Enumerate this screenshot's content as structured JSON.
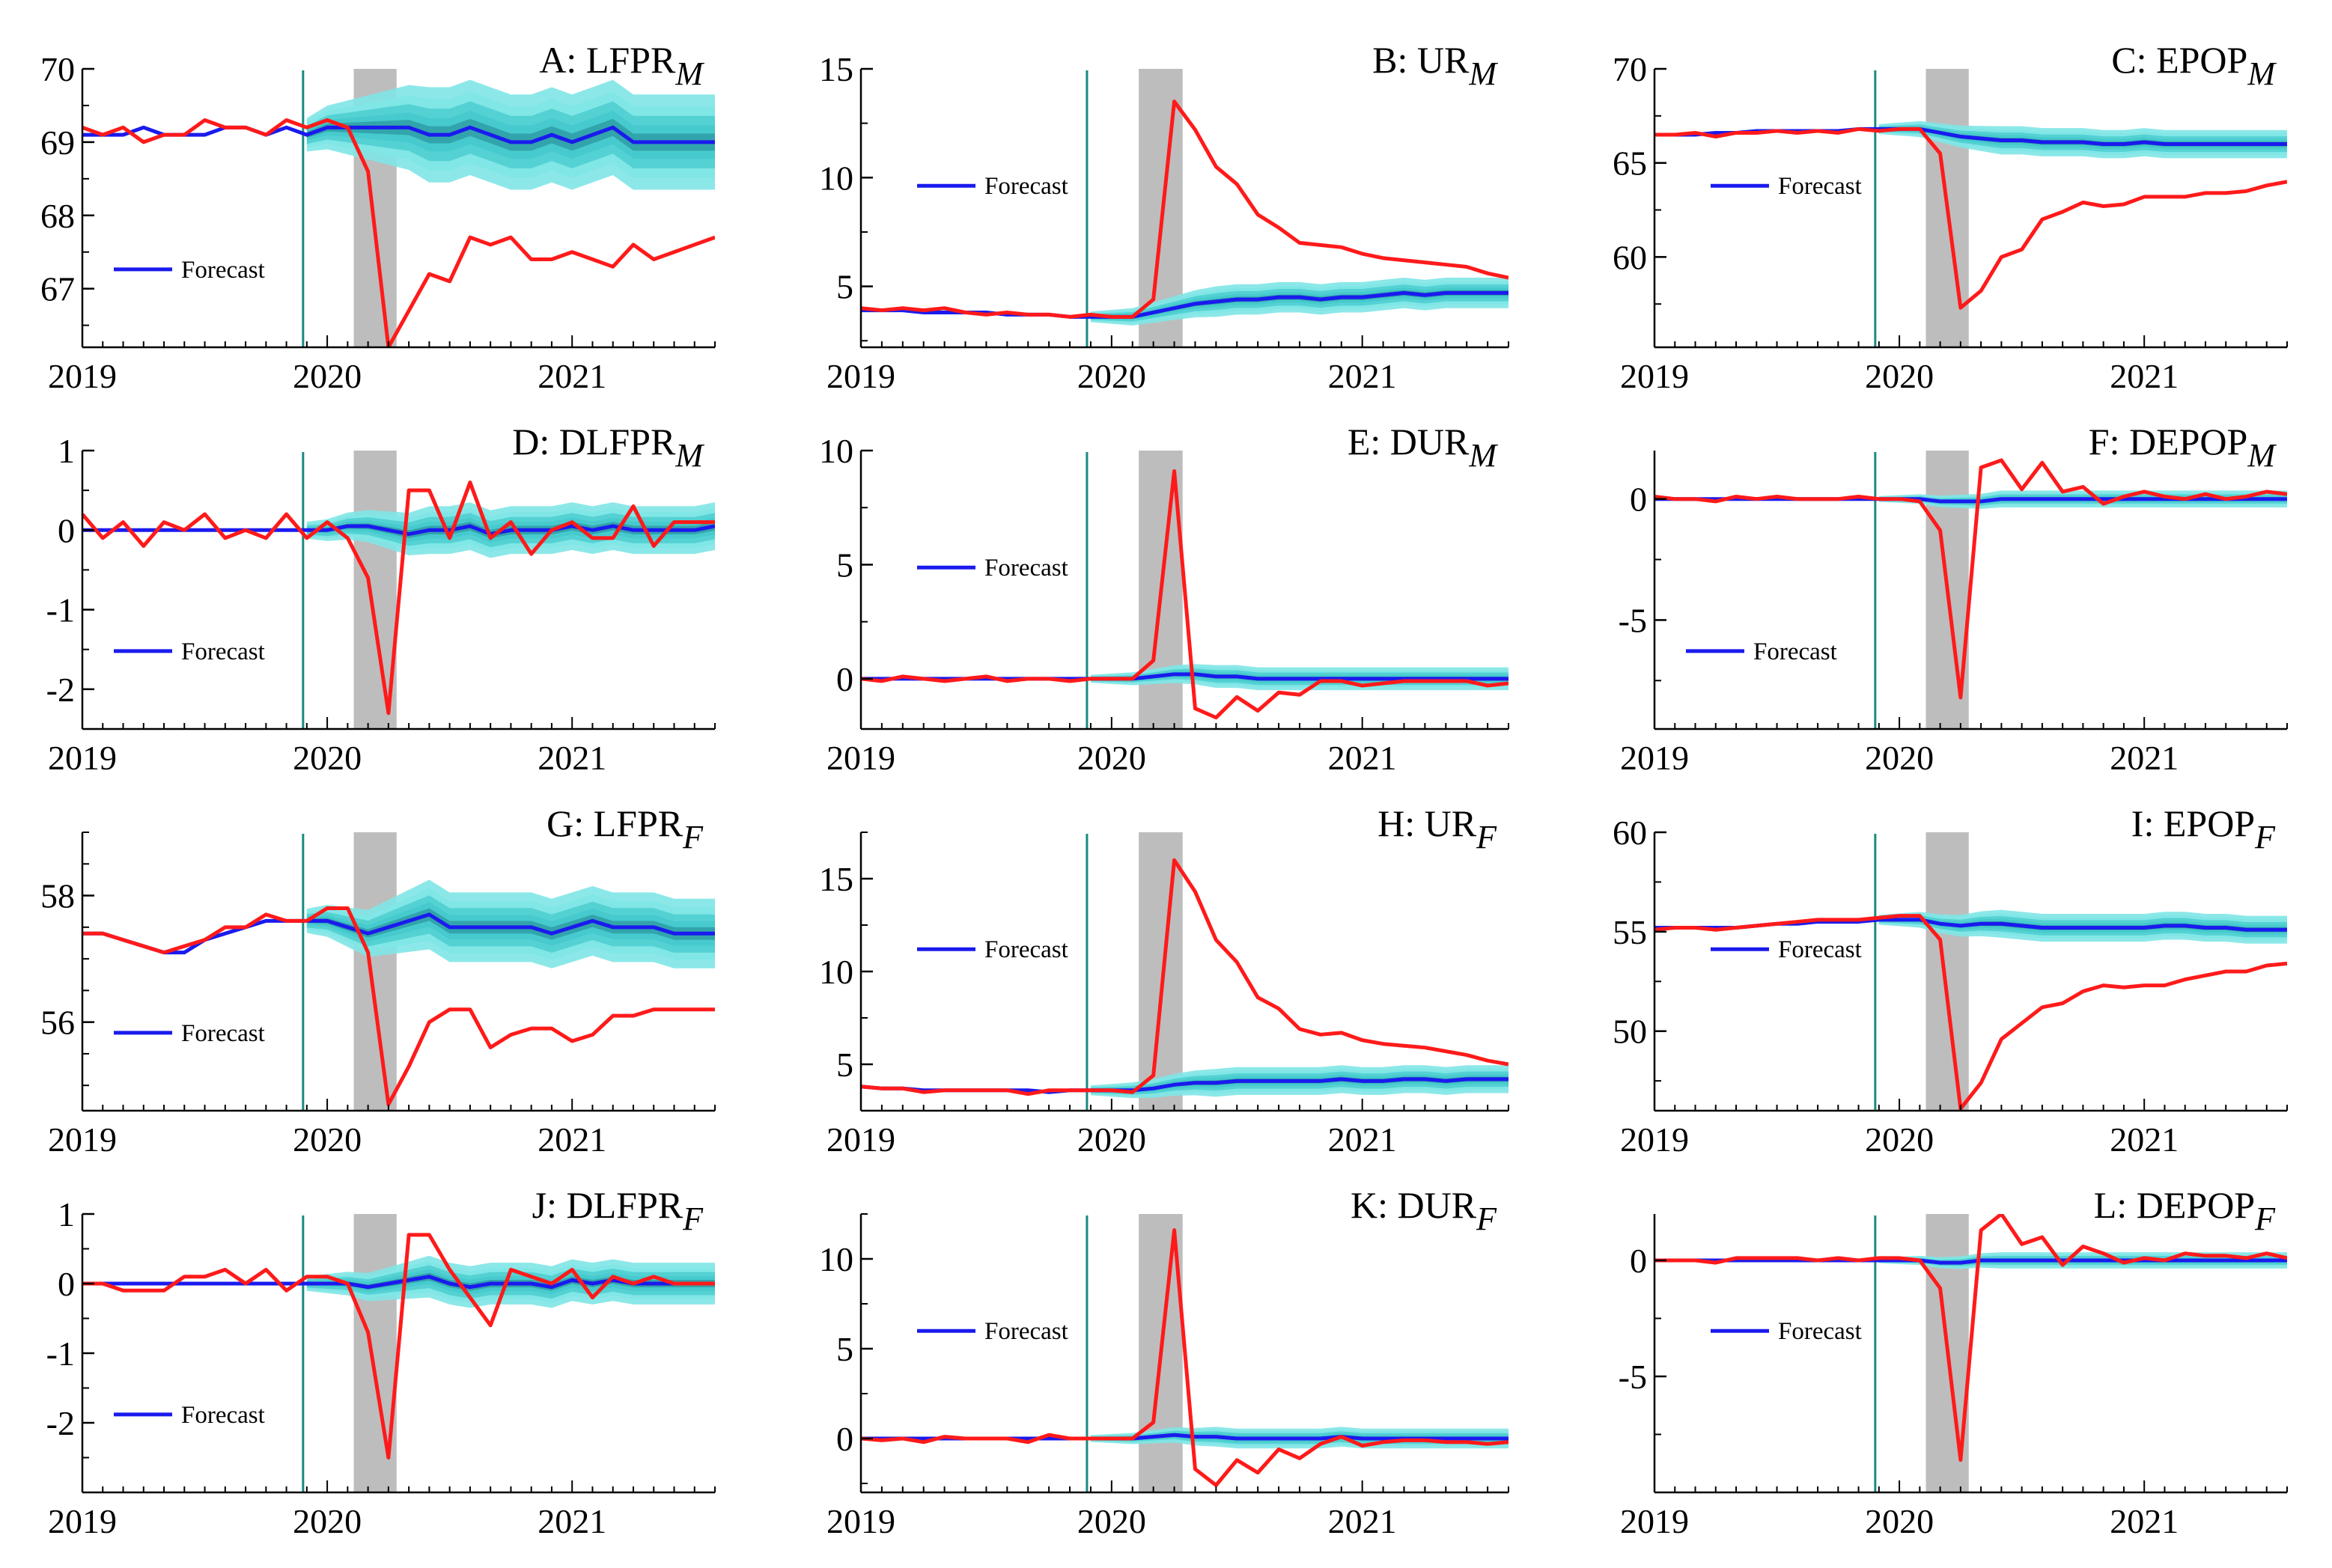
{
  "figure": {
    "x_ticks": [
      "2019",
      "2020",
      "2021"
    ],
    "legend_label": "Forecast",
    "colors": {
      "actual": "#ff1a1a",
      "forecast": "#1a1aee",
      "band_outer": "#7fe6e6",
      "band_mid": "#45c9cc",
      "band_inner": "#2f9ea6",
      "covid_shade": "#bdbdbd",
      "forecast_start_line": "#1a8a80"
    }
  },
  "chart_data": [
    {
      "id": "A",
      "title_main": "A: LFPR",
      "title_sub": "M",
      "type": "line",
      "ylim": [
        66.2,
        70
      ],
      "yticks": [
        67,
        68,
        69,
        70
      ],
      "yticklabels": [
        "67",
        "68",
        "69",
        "70"
      ],
      "minor_step": 0.5,
      "actual": [
        69.2,
        69.1,
        69.2,
        69.0,
        69.1,
        69.1,
        69.3,
        69.2,
        69.2,
        69.1,
        69.3,
        69.2,
        69.3,
        69.2,
        68.6,
        66.2,
        66.7,
        67.2,
        67.1,
        67.7,
        67.6,
        67.7,
        67.4,
        67.4,
        67.5,
        67.4,
        67.3,
        67.6,
        67.4,
        67.5,
        67.6,
        67.7
      ],
      "forecast": [
        69.1,
        69.1,
        69.1,
        69.2,
        69.1,
        69.1,
        69.1,
        69.2,
        69.2,
        69.1,
        69.2,
        69.1,
        69.2,
        69.2,
        69.2,
        69.2,
        69.2,
        69.1,
        69.1,
        69.2,
        69.1,
        69.0,
        69.0,
        69.1,
        69.0,
        69.1,
        69.2,
        69.0,
        69.0,
        69.0,
        69.0,
        69.0
      ],
      "band_half": 0.65,
      "legend_pos": "lower-left"
    },
    {
      "id": "B",
      "title_main": "B: UR",
      "title_sub": "M",
      "type": "line",
      "ylim": [
        2.2,
        15
      ],
      "yticks": [
        5,
        10,
        15
      ],
      "yticklabels": [
        "5",
        "10",
        "15"
      ],
      "minor_step": 2.5,
      "actual": [
        4.0,
        3.9,
        4.0,
        3.9,
        4.0,
        3.8,
        3.7,
        3.8,
        3.7,
        3.7,
        3.6,
        3.7,
        3.6,
        3.6,
        4.4,
        13.5,
        12.2,
        10.5,
        9.7,
        8.3,
        7.7,
        7.0,
        6.9,
        6.8,
        6.5,
        6.3,
        6.2,
        6.1,
        6.0,
        5.9,
        5.6,
        5.4
      ],
      "forecast": [
        3.9,
        3.9,
        3.9,
        3.8,
        3.8,
        3.8,
        3.8,
        3.7,
        3.7,
        3.7,
        3.6,
        3.6,
        3.6,
        3.6,
        3.8,
        4.0,
        4.2,
        4.3,
        4.4,
        4.4,
        4.5,
        4.5,
        4.4,
        4.5,
        4.5,
        4.6,
        4.7,
        4.6,
        4.7,
        4.7,
        4.7,
        4.7
      ],
      "band_half": 0.7,
      "legend_pos": "upper-left"
    },
    {
      "id": "C",
      "title_main": "C: EPOP",
      "title_sub": "M",
      "type": "line",
      "ylim": [
        55.2,
        70
      ],
      "yticks": [
        60,
        65,
        70
      ],
      "yticklabels": [
        "60",
        "65",
        "70"
      ],
      "minor_step": 2.5,
      "actual": [
        66.5,
        66.5,
        66.6,
        66.4,
        66.6,
        66.6,
        66.7,
        66.6,
        66.7,
        66.6,
        66.8,
        66.7,
        66.8,
        66.8,
        65.5,
        57.3,
        58.2,
        60.0,
        60.4,
        62.0,
        62.4,
        62.9,
        62.7,
        62.8,
        63.2,
        63.2,
        63.2,
        63.4,
        63.4,
        63.5,
        63.8,
        64.0
      ],
      "forecast": [
        66.5,
        66.5,
        66.5,
        66.6,
        66.6,
        66.7,
        66.7,
        66.7,
        66.7,
        66.7,
        66.8,
        66.8,
        66.8,
        66.8,
        66.6,
        66.4,
        66.3,
        66.2,
        66.2,
        66.1,
        66.1,
        66.1,
        66.0,
        66.0,
        66.1,
        66.0,
        66.0,
        66.0,
        66.0,
        66.0,
        66.0,
        66.0
      ],
      "band_half": 0.75,
      "legend_pos": "upper-left"
    },
    {
      "id": "D",
      "title_main": "D: DLFPR",
      "title_sub": "M",
      "type": "line",
      "ylim": [
        -2.5,
        1
      ],
      "yticks": [
        -2,
        -1,
        0,
        1
      ],
      "yticklabels": [
        "-2",
        "-1",
        "0",
        "1"
      ],
      "minor_step": 0.5,
      "actual": [
        0.2,
        -0.1,
        0.1,
        -0.2,
        0.1,
        0.0,
        0.2,
        -0.1,
        0.0,
        -0.1,
        0.2,
        -0.1,
        0.1,
        -0.1,
        -0.6,
        -2.3,
        0.5,
        0.5,
        -0.1,
        0.6,
        -0.1,
        0.1,
        -0.3,
        0.0,
        0.1,
        -0.1,
        -0.1,
        0.3,
        -0.2,
        0.1,
        0.1,
        0.1
      ],
      "forecast": [
        0.0,
        0.0,
        0.0,
        0.0,
        0.0,
        0.0,
        0.0,
        0.0,
        0.0,
        0.0,
        0.0,
        0.0,
        0.0,
        0.05,
        0.05,
        0.0,
        -0.05,
        0.0,
        0.0,
        0.05,
        -0.05,
        0.0,
        0.0,
        0.0,
        0.05,
        0.0,
        0.05,
        0.0,
        0.0,
        0.0,
        0.0,
        0.05
      ],
      "band_half": 0.3,
      "legend_pos": "lower-left"
    },
    {
      "id": "E",
      "title_main": "E: DUR",
      "title_sub": "M",
      "type": "line",
      "ylim": [
        -2.2,
        10
      ],
      "yticks": [
        0,
        5,
        10
      ],
      "yticklabels": [
        "0",
        "5",
        "10"
      ],
      "minor_step": 2.5,
      "actual": [
        0.0,
        -0.1,
        0.1,
        0.0,
        -0.1,
        0.0,
        0.1,
        -0.1,
        0.0,
        0.0,
        -0.1,
        0.0,
        0.0,
        0.0,
        0.8,
        9.1,
        -1.3,
        -1.7,
        -0.8,
        -1.4,
        -0.6,
        -0.7,
        -0.1,
        -0.1,
        -0.3,
        -0.2,
        -0.1,
        -0.1,
        -0.1,
        -0.1,
        -0.3,
        -0.2
      ],
      "forecast": [
        0.0,
        0.0,
        0.0,
        0.0,
        0.0,
        0.0,
        0.0,
        0.0,
        0.0,
        0.0,
        0.0,
        0.0,
        0.0,
        0.0,
        0.1,
        0.2,
        0.2,
        0.1,
        0.1,
        0.0,
        0.0,
        0.0,
        0.0,
        0.0,
        0.0,
        0.0,
        0.0,
        0.0,
        0.0,
        0.0,
        0.0,
        0.0
      ],
      "band_half": 0.5,
      "legend_pos": "upper-left"
    },
    {
      "id": "F",
      "title_main": "F: DEPOP",
      "title_sub": "M",
      "type": "line",
      "ylim": [
        -9.5,
        2
      ],
      "yticks": [
        -5,
        0
      ],
      "yticklabels": [
        "-5",
        "0"
      ],
      "minor_step": 2.5,
      "actual": [
        0.1,
        0.0,
        0.0,
        -0.1,
        0.1,
        0.0,
        0.1,
        0.0,
        0.0,
        0.0,
        0.1,
        0.0,
        0.0,
        -0.1,
        -1.3,
        -8.2,
        1.3,
        1.6,
        0.4,
        1.5,
        0.3,
        0.5,
        -0.2,
        0.1,
        0.3,
        0.1,
        0.0,
        0.2,
        0.0,
        0.1,
        0.3,
        0.2
      ],
      "forecast": [
        0.0,
        0.0,
        0.0,
        0.0,
        0.0,
        0.0,
        0.0,
        0.0,
        0.0,
        0.0,
        0.0,
        0.0,
        0.0,
        0.0,
        -0.1,
        -0.1,
        -0.1,
        0.0,
        0.0,
        0.0,
        0.0,
        0.0,
        0.0,
        0.0,
        0.0,
        0.0,
        0.0,
        0.0,
        0.0,
        0.0,
        0.0,
        0.0
      ],
      "band_half": 0.35,
      "legend_pos": "lower-left"
    },
    {
      "id": "G",
      "title_main": "G: LFPR",
      "title_sub": "F",
      "type": "line",
      "ylim": [
        54.6,
        59
      ],
      "yticks": [
        56,
        58
      ],
      "yticklabels": [
        "56",
        "58"
      ],
      "minor_step": 0.5,
      "actual": [
        57.4,
        57.4,
        57.3,
        57.2,
        57.1,
        57.2,
        57.3,
        57.5,
        57.5,
        57.7,
        57.6,
        57.6,
        57.8,
        57.8,
        57.1,
        54.7,
        55.3,
        56.0,
        56.2,
        56.2,
        55.6,
        55.8,
        55.9,
        55.9,
        55.7,
        55.8,
        56.1,
        56.1,
        56.2,
        56.2,
        56.2,
        56.2
      ],
      "forecast": [
        57.4,
        57.4,
        57.3,
        57.2,
        57.1,
        57.1,
        57.3,
        57.4,
        57.5,
        57.6,
        57.6,
        57.6,
        57.6,
        57.5,
        57.4,
        57.5,
        57.6,
        57.7,
        57.5,
        57.5,
        57.5,
        57.5,
        57.5,
        57.4,
        57.5,
        57.6,
        57.5,
        57.5,
        57.5,
        57.4,
        57.4,
        57.4
      ],
      "band_half": 0.55,
      "legend_pos": "lower-left"
    },
    {
      "id": "H",
      "title_main": "H: UR",
      "title_sub": "F",
      "type": "line",
      "ylim": [
        2.5,
        17.5
      ],
      "yticks": [
        5,
        10,
        15
      ],
      "yticklabels": [
        "5",
        "10",
        "15"
      ],
      "minor_step": 2.5,
      "actual": [
        3.8,
        3.7,
        3.7,
        3.5,
        3.6,
        3.6,
        3.6,
        3.6,
        3.4,
        3.6,
        3.6,
        3.6,
        3.6,
        3.5,
        4.4,
        16.0,
        14.3,
        11.7,
        10.5,
        8.6,
        8.0,
        6.9,
        6.6,
        6.7,
        6.3,
        6.1,
        6.0,
        5.9,
        5.7,
        5.5,
        5.2,
        5.0
      ],
      "forecast": [
        3.8,
        3.7,
        3.7,
        3.6,
        3.6,
        3.6,
        3.6,
        3.6,
        3.6,
        3.5,
        3.6,
        3.6,
        3.6,
        3.6,
        3.7,
        3.9,
        4.0,
        4.0,
        4.1,
        4.1,
        4.1,
        4.1,
        4.1,
        4.2,
        4.1,
        4.1,
        4.2,
        4.2,
        4.1,
        4.2,
        4.2,
        4.2
      ],
      "band_half": 0.75,
      "legend_pos": "upper-left"
    },
    {
      "id": "I",
      "title_main": "I: EPOP",
      "title_sub": "F",
      "type": "line",
      "ylim": [
        46,
        60
      ],
      "yticks": [
        50,
        55,
        60
      ],
      "yticklabels": [
        "50",
        "55",
        "60"
      ],
      "minor_step": 2.5,
      "actual": [
        55.1,
        55.2,
        55.2,
        55.1,
        55.2,
        55.3,
        55.4,
        55.5,
        55.6,
        55.6,
        55.6,
        55.7,
        55.8,
        55.8,
        54.6,
        46.1,
        47.4,
        49.6,
        50.4,
        51.2,
        51.4,
        52.0,
        52.3,
        52.2,
        52.3,
        52.3,
        52.6,
        52.8,
        53.0,
        53.0,
        53.3,
        53.4
      ],
      "forecast": [
        55.2,
        55.2,
        55.2,
        55.2,
        55.2,
        55.3,
        55.4,
        55.4,
        55.5,
        55.5,
        55.5,
        55.6,
        55.6,
        55.6,
        55.4,
        55.3,
        55.4,
        55.4,
        55.3,
        55.2,
        55.2,
        55.2,
        55.2,
        55.2,
        55.2,
        55.3,
        55.3,
        55.2,
        55.2,
        55.1,
        55.1,
        55.1
      ],
      "band_half": 0.7,
      "legend_pos": "upper-left"
    },
    {
      "id": "J",
      "title_main": "J: DLFPR",
      "title_sub": "F",
      "type": "line",
      "ylim": [
        -3,
        1
      ],
      "yticks": [
        -2,
        -1,
        0,
        1
      ],
      "yticklabels": [
        "-2",
        "-1",
        "0",
        "1"
      ],
      "minor_step": 0.5,
      "actual": [
        0.0,
        0.0,
        -0.1,
        -0.1,
        -0.1,
        0.1,
        0.1,
        0.2,
        0.0,
        0.2,
        -0.1,
        0.1,
        0.1,
        0.0,
        -0.7,
        -2.5,
        0.7,
        0.7,
        0.2,
        -0.2,
        -0.6,
        0.2,
        0.1,
        0.0,
        0.2,
        -0.2,
        0.1,
        0.0,
        0.1,
        0.0,
        0.0,
        0.0
      ],
      "forecast": [
        0.0,
        0.0,
        0.0,
        0.0,
        0.0,
        0.0,
        0.0,
        0.0,
        0.0,
        0.0,
        0.0,
        0.0,
        0.0,
        0.0,
        -0.05,
        0.0,
        0.05,
        0.1,
        0.0,
        -0.05,
        0.0,
        0.0,
        0.0,
        -0.05,
        0.05,
        0.0,
        0.05,
        0.0,
        0.0,
        0.0,
        0.0,
        0.0
      ],
      "band_half": 0.3,
      "legend_pos": "lower-left"
    },
    {
      "id": "K",
      "title_main": "K: DUR",
      "title_sub": "F",
      "type": "line",
      "ylim": [
        -3,
        12.5
      ],
      "yticks": [
        0,
        5,
        10
      ],
      "yticklabels": [
        "0",
        "5",
        "10"
      ],
      "minor_step": 2.5,
      "actual": [
        0.0,
        -0.1,
        0.0,
        -0.2,
        0.1,
        0.0,
        0.0,
        0.0,
        -0.2,
        0.2,
        0.0,
        0.0,
        0.0,
        0.0,
        0.9,
        11.6,
        -1.7,
        -2.6,
        -1.2,
        -1.9,
        -0.6,
        -1.1,
        -0.3,
        0.1,
        -0.4,
        -0.2,
        -0.1,
        -0.1,
        -0.2,
        -0.2,
        -0.3,
        -0.2
      ],
      "forecast": [
        0.0,
        0.0,
        0.0,
        0.0,
        0.0,
        0.0,
        0.0,
        0.0,
        0.0,
        0.0,
        0.0,
        0.0,
        0.0,
        0.0,
        0.1,
        0.2,
        0.1,
        0.1,
        0.0,
        0.0,
        0.0,
        0.0,
        0.0,
        0.1,
        0.0,
        0.0,
        0.0,
        0.0,
        0.0,
        0.0,
        0.0,
        0.0
      ],
      "band_half": 0.55,
      "legend_pos": "upper-left"
    },
    {
      "id": "L",
      "title_main": "L: DEPOP",
      "title_sub": "F",
      "type": "line",
      "ylim": [
        -10,
        2
      ],
      "yticks": [
        -5,
        0
      ],
      "yticklabels": [
        "-5",
        "0"
      ],
      "minor_step": 2.5,
      "actual": [
        0.0,
        0.0,
        0.0,
        -0.1,
        0.1,
        0.1,
        0.1,
        0.1,
        0.0,
        0.1,
        0.0,
        0.1,
        0.1,
        0.0,
        -1.2,
        -8.6,
        1.3,
        2.0,
        0.7,
        1.0,
        -0.2,
        0.6,
        0.3,
        -0.1,
        0.1,
        0.0,
        0.3,
        0.2,
        0.2,
        0.1,
        0.3,
        0.1
      ],
      "forecast": [
        0.0,
        0.0,
        0.0,
        0.0,
        0.0,
        0.0,
        0.0,
        0.0,
        0.0,
        0.0,
        0.0,
        0.0,
        0.0,
        0.0,
        -0.1,
        -0.1,
        0.0,
        0.0,
        0.0,
        0.0,
        0.0,
        0.0,
        0.0,
        0.0,
        0.0,
        0.0,
        0.0,
        0.0,
        0.0,
        0.0,
        0.0,
        0.0
      ],
      "band_half": 0.35,
      "legend_pos": "upper-left"
    }
  ]
}
